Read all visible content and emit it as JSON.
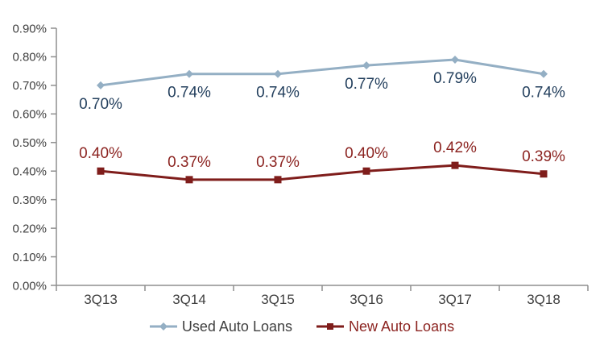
{
  "chart_data": {
    "type": "line",
    "title": "",
    "xlabel": "",
    "ylabel": "",
    "grid": false,
    "legend_position": "bottom",
    "background_color": "#ffffff",
    "axis_color": "#8f8f8f",
    "axis_text_color": "#3f3f3f",
    "categories": [
      "3Q13",
      "3Q14",
      "3Q15",
      "3Q16",
      "3Q17",
      "3Q18"
    ],
    "y_axis": {
      "min": 0,
      "max": 0.9,
      "step": 0.1,
      "tick_labels": [
        "0.00%",
        "0.10%",
        "0.20%",
        "0.30%",
        "0.40%",
        "0.50%",
        "0.60%",
        "0.70%",
        "0.80%",
        "0.90%"
      ]
    },
    "series": [
      {
        "name": "Used Auto Loans",
        "values": [
          0.7,
          0.74,
          0.74,
          0.77,
          0.79,
          0.74
        ],
        "labels": [
          "0.70%",
          "0.74%",
          "0.74%",
          "0.77%",
          "0.79%",
          "0.74%"
        ],
        "color": "#94afc4",
        "label_color": "#24405e",
        "legend_text_color": "#404040",
        "marker": "diamond",
        "label_position": "below"
      },
      {
        "name": "New Auto Loans",
        "values": [
          0.4,
          0.37,
          0.37,
          0.4,
          0.42,
          0.39
        ],
        "labels": [
          "0.40%",
          "0.37%",
          "0.37%",
          "0.40%",
          "0.42%",
          "0.39%"
        ],
        "color": "#7f1d1b",
        "label_color": "#8c2421",
        "legend_text_color": "#8c2421",
        "marker": "square",
        "label_position": "above"
      }
    ]
  }
}
